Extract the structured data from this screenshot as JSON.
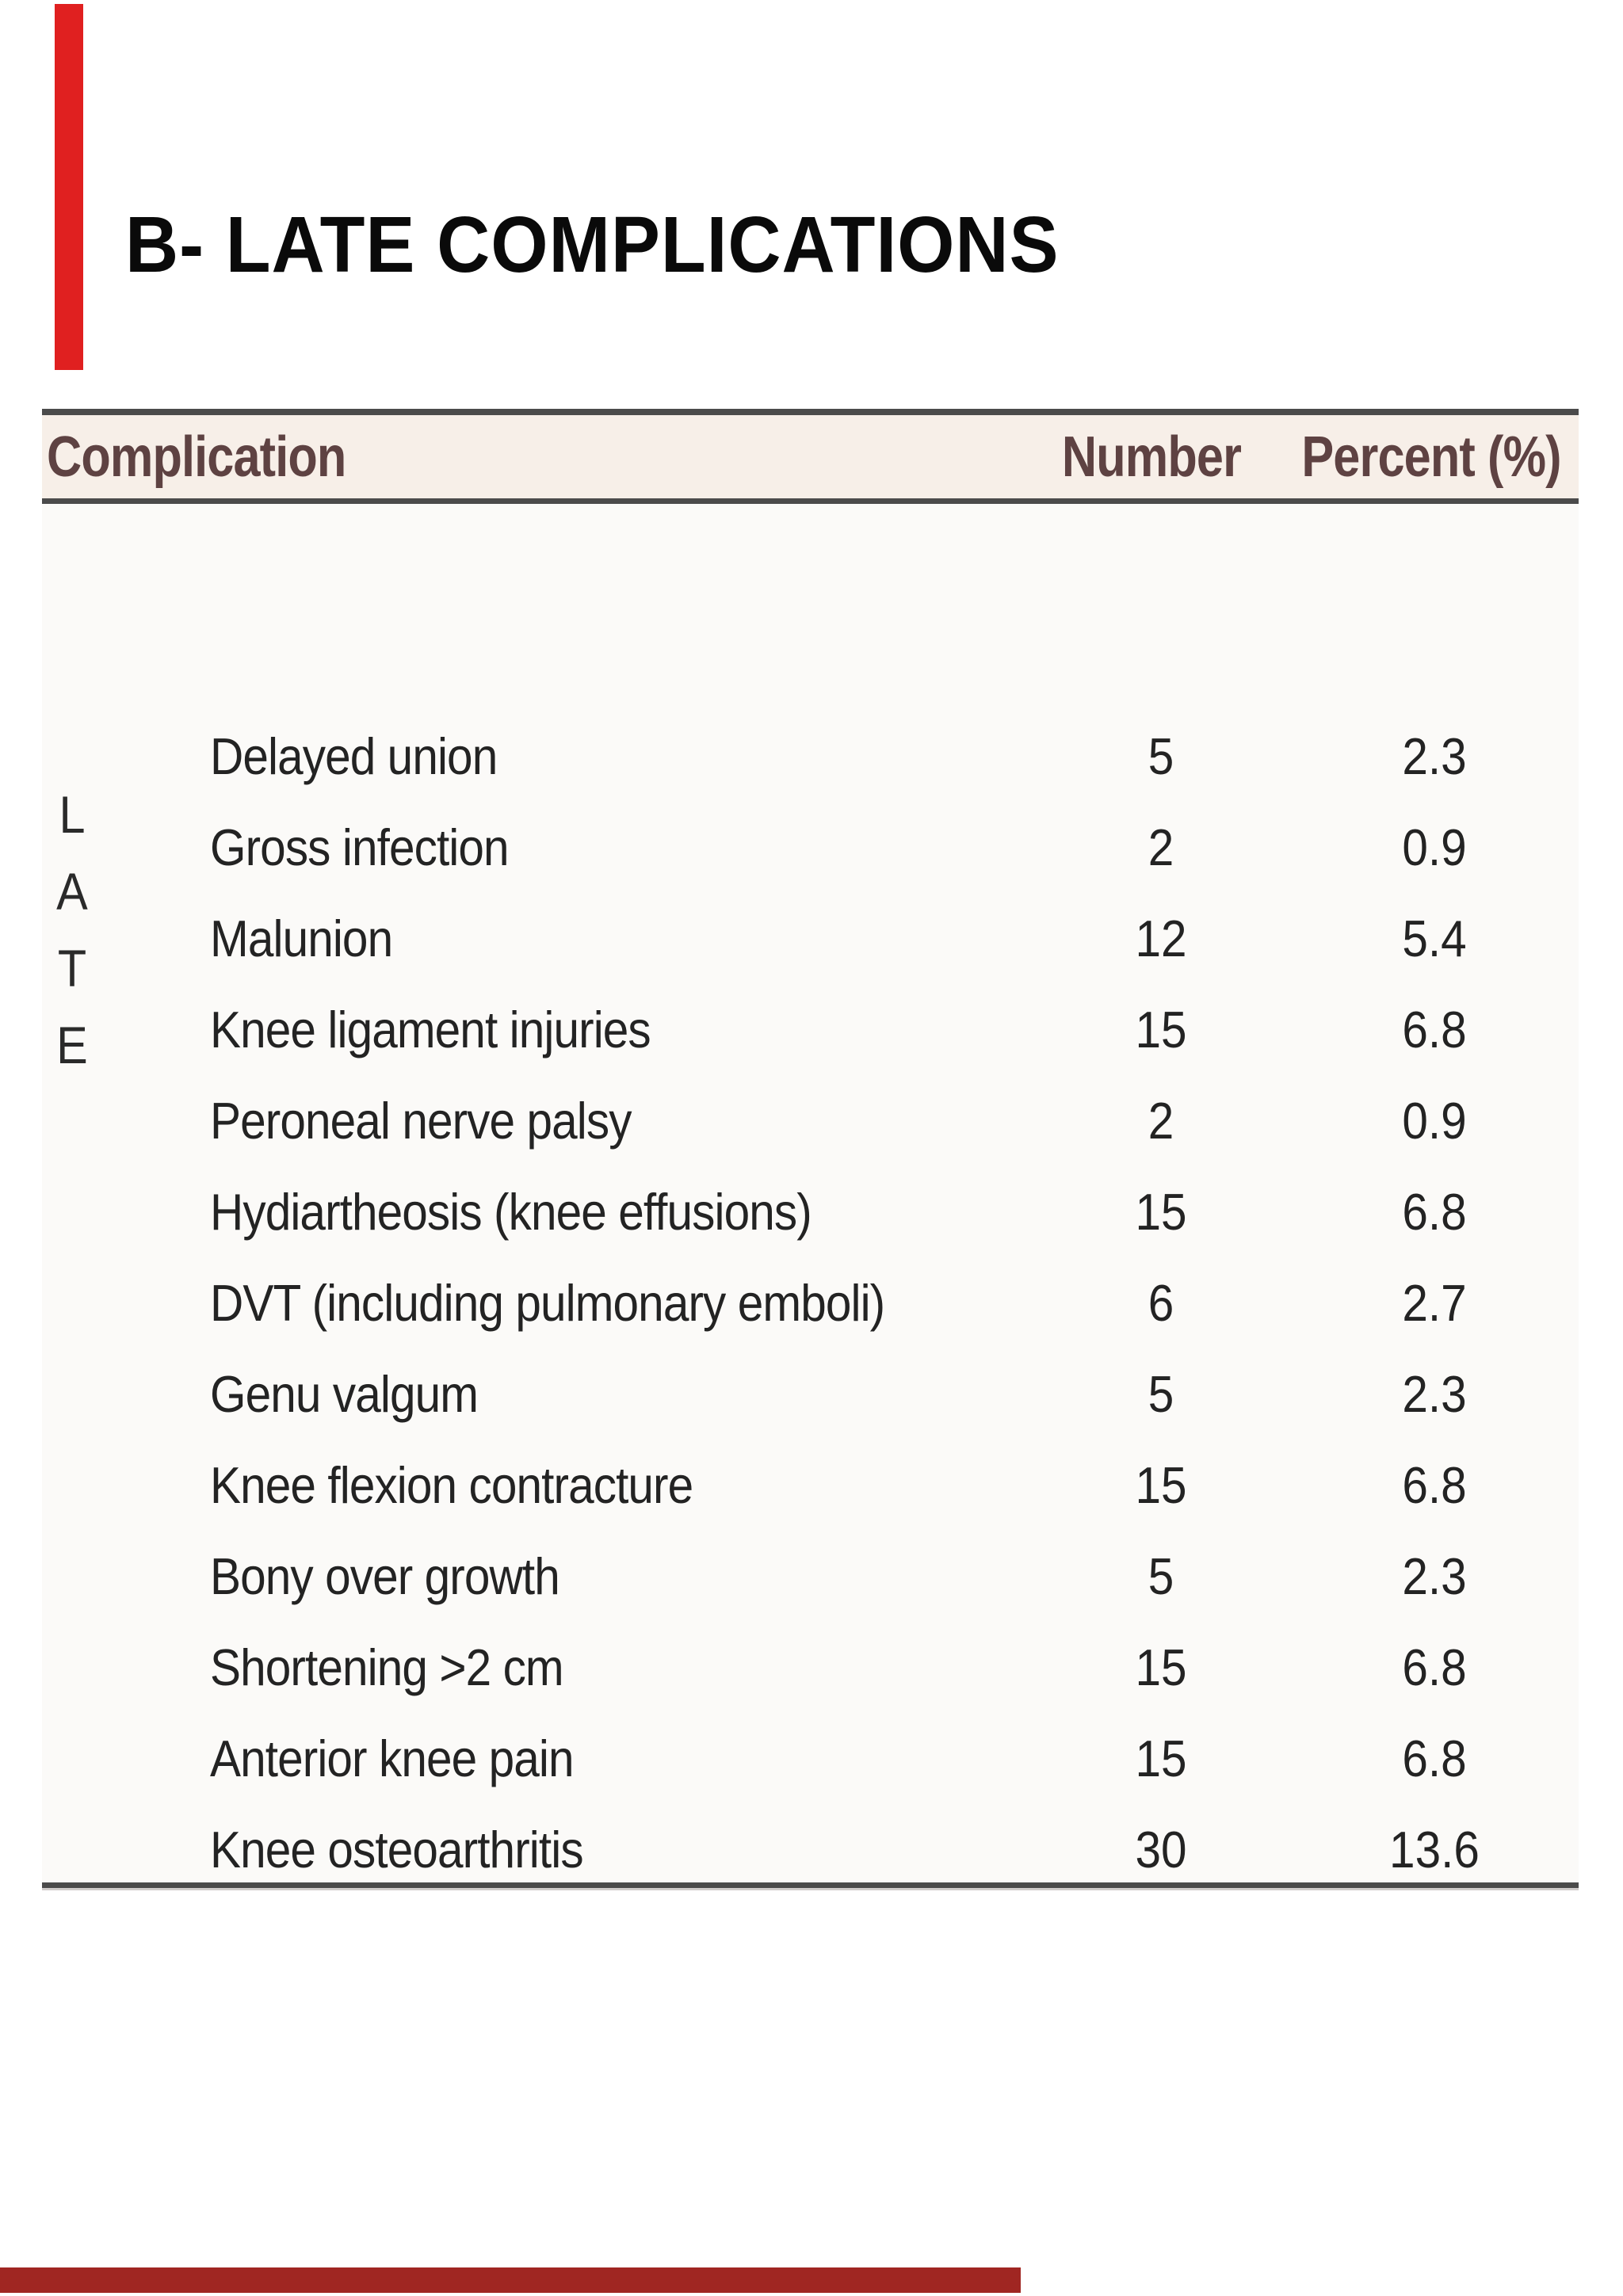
{
  "slide": {
    "title": "B- LATE COMPLICATIONS"
  },
  "table": {
    "headers": {
      "complication": "Complication",
      "number": "Number",
      "percent": "Percent (%)"
    },
    "side_label": "LATE",
    "side_label_letters": [
      "L",
      "A",
      "T",
      "E"
    ],
    "rows": [
      {
        "label": "Delayed union",
        "number": "5",
        "percent": "2.3"
      },
      {
        "label": "Gross infection",
        "number": "2",
        "percent": "0.9"
      },
      {
        "label": "Malunion",
        "number": "12",
        "percent": "5.4"
      },
      {
        "label": "Knee ligament injuries",
        "number": "15",
        "percent": "6.8"
      },
      {
        "label": "Peroneal nerve palsy",
        "number": "2",
        "percent": "0.9"
      },
      {
        "label": "Hydiartheosis (knee effusions)",
        "number": "15",
        "percent": "6.8"
      },
      {
        "label": "DVT (including pulmonary emboli)",
        "number": "6",
        "percent": "2.7"
      },
      {
        "label": "Genu valgum",
        "number": "5",
        "percent": "2.3"
      },
      {
        "label": "Knee flexion contracture",
        "number": "15",
        "percent": "6.8"
      },
      {
        "label": "Bony over growth",
        "number": "5",
        "percent": "2.3"
      },
      {
        "label": "Shortening >2 cm",
        "number": "15",
        "percent": "6.8"
      },
      {
        "label": "Anterior knee pain",
        "number": "15",
        "percent": "6.8"
      },
      {
        "label": "Knee osteoarthritis",
        "number": "30",
        "percent": "13.6"
      }
    ]
  },
  "colors": {
    "accent_bar_top": "#e02020",
    "accent_bar_bottom": "#a02622",
    "header_text": "#5e4242",
    "header_background": "#f7efe8",
    "rule": "#4b4b4b",
    "body_text": "#232323",
    "title_text": "#0a0a0a"
  }
}
